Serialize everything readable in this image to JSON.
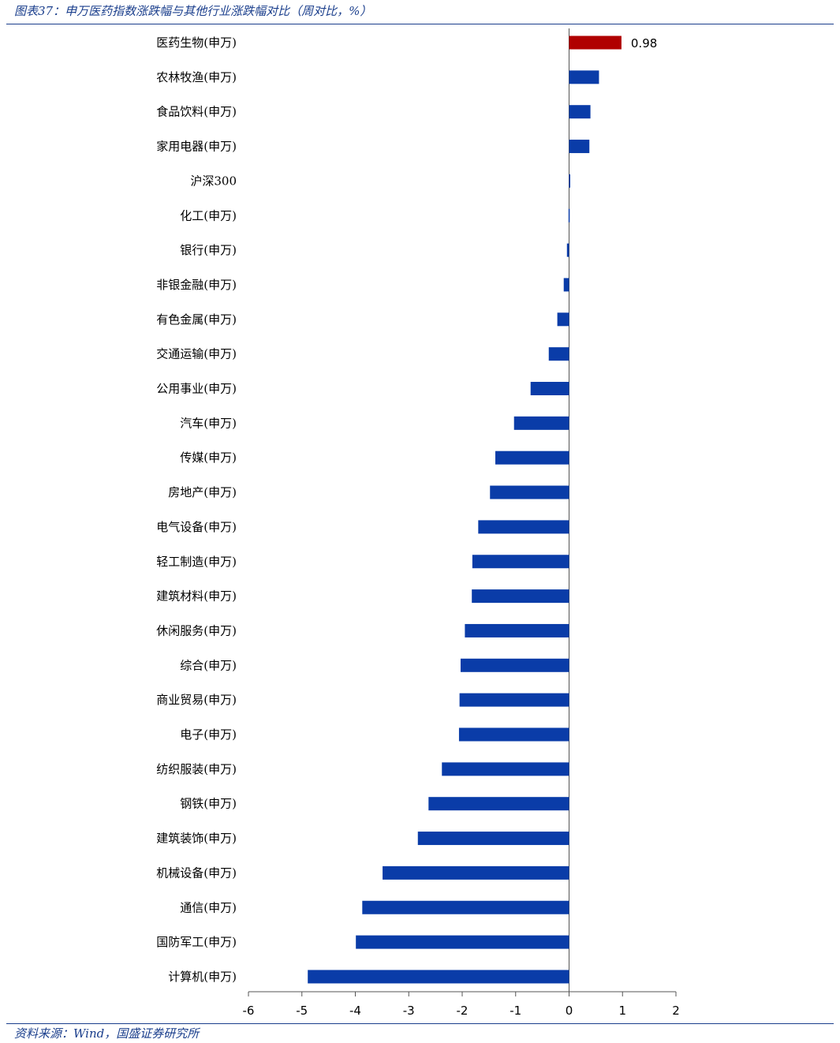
{
  "header": {
    "title": "图表37：申万医药指数涨跌幅与其他行业涨跌幅对比（周对比，%）"
  },
  "footer": {
    "source": "资料来源：Wind，国盛证券研究所"
  },
  "colors": {
    "primary_bar": "#0a3ca8",
    "highlight_bar": "#b00000",
    "axis": "#555555",
    "rule": "#1a3e8c"
  },
  "chart_data": {
    "type": "bar",
    "orientation": "horizontal",
    "title": "申万医药指数涨跌幅与其他行业涨跌幅对比（周对比，%）",
    "xlabel": "",
    "ylabel": "",
    "xlim": [
      -6,
      2
    ],
    "xticks": [
      -6,
      -5,
      -4,
      -3,
      -2,
      -1,
      0,
      1,
      2
    ],
    "grid": false,
    "highlight_category": "医药生物(申万)",
    "categories": [
      "医药生物(申万)",
      "农林牧渔(申万)",
      "食品饮料(申万)",
      "家用电器(申万)",
      "沪深300",
      "化工(申万)",
      "银行(申万)",
      "非银金融(申万)",
      "有色金属(申万)",
      "交通运输(申万)",
      "公用事业(申万)",
      "汽车(申万)",
      "传媒(申万)",
      "房地产(申万)",
      "电气设备(申万)",
      "轻工制造(申万)",
      "建筑材料(申万)",
      "休闲服务(申万)",
      "综合(申万)",
      "商业贸易(申万)",
      "电子(申万)",
      "纺织服装(申万)",
      "钢铁(申万)",
      "建筑装饰(申万)",
      "机械设备(申万)",
      "通信(申万)",
      "国防军工(申万)",
      "计算机(申万)"
    ],
    "values": [
      0.98,
      0.56,
      0.4,
      0.38,
      0.01,
      -0.01,
      -0.04,
      -0.1,
      -0.22,
      -0.38,
      -0.72,
      -1.03,
      -1.38,
      -1.48,
      -1.7,
      -1.81,
      -1.82,
      -1.95,
      -2.03,
      -2.05,
      -2.06,
      -2.38,
      -2.63,
      -2.83,
      -3.49,
      -3.87,
      -3.99,
      -4.89
    ],
    "data_labels": [
      {
        "category": "医药生物(申万)",
        "text": "0.98"
      }
    ]
  }
}
